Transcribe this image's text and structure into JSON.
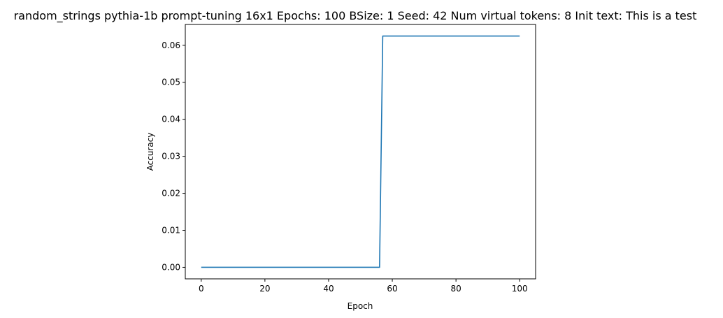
{
  "chart_data": {
    "type": "line",
    "title": "random_strings pythia-1b prompt-tuning 16x1 Epochs: 100 BSize: 1 Seed: 42 Num virtual tokens: 8 Init text: This is a test",
    "xlabel": "Epoch",
    "ylabel": "Accuracy",
    "xlim": [
      -5,
      105
    ],
    "ylim": [
      -0.003125,
      0.065625
    ],
    "xticks": [
      0,
      20,
      40,
      60,
      80,
      100
    ],
    "xtick_labels": [
      "0",
      "20",
      "40",
      "60",
      "80",
      "100"
    ],
    "yticks": [
      0.0,
      0.01,
      0.02,
      0.03,
      0.04,
      0.05,
      0.06
    ],
    "ytick_labels": [
      "0.00",
      "0.01",
      "0.02",
      "0.03",
      "0.04",
      "0.05",
      "0.06"
    ],
    "grid": false,
    "series": [
      {
        "color": "#1f77b4",
        "x": [
          0,
          10,
          20,
          30,
          40,
          50,
          56,
          57,
          60,
          70,
          80,
          90,
          100
        ],
        "y": [
          0,
          0,
          0,
          0,
          0,
          0,
          0,
          0.0625,
          0.0625,
          0.0625,
          0.0625,
          0.0625,
          0.0625
        ]
      }
    ]
  }
}
